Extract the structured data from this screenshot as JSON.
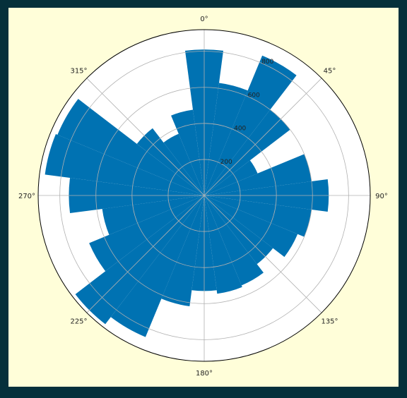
{
  "colors": {
    "background": "#05303b",
    "figure": "#fffed9",
    "bar": "#0072b2",
    "plot_area": "#ffffff",
    "grid": "#b0b0b0"
  },
  "chart_data": {
    "type": "bar",
    "projection": "polar",
    "theta_zero_location": "N",
    "theta_direction": "clockwise",
    "angle_tick_labels": [
      "0°",
      "45°",
      "90°",
      "135°",
      "180°",
      "225°",
      "270°",
      "315°"
    ],
    "radial_tick_labels": [
      "200",
      "400",
      "600",
      "800"
    ],
    "radial_ticks": [
      200,
      400,
      600,
      800
    ],
    "rlim": [
      0,
      920
    ],
    "grid": true,
    "bar_width_deg": 15,
    "categories_deg": [
      0,
      15,
      30,
      45,
      60,
      75,
      90,
      105,
      120,
      135,
      150,
      165,
      180,
      195,
      210,
      225,
      240,
      255,
      270,
      285,
      300,
      315,
      330,
      345
    ],
    "values": [
      810,
      630,
      840,
      600,
      320,
      600,
      690,
      600,
      560,
      480,
      540,
      550,
      530,
      620,
      850,
      900,
      690,
      570,
      750,
      890,
      880,
      470,
      370,
      480
    ]
  }
}
